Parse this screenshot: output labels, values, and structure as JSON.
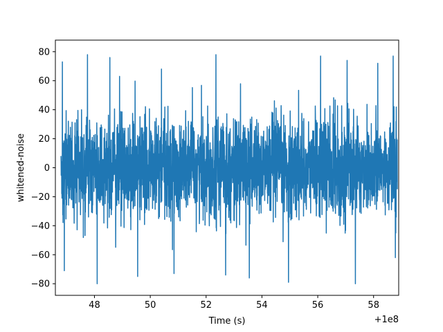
{
  "chart_data": {
    "type": "line",
    "title": "",
    "xlabel": "Time (s)",
    "ylabel": "whitened-noise",
    "x_offset_label": "+1e8",
    "xlim": [
      46.6,
      58.9
    ],
    "ylim": [
      -88,
      88
    ],
    "x_ticks": [
      48,
      50,
      52,
      54,
      56,
      58
    ],
    "y_ticks": [
      -80,
      -60,
      -40,
      -20,
      0,
      20,
      40,
      60,
      80
    ],
    "x_range": [
      46.8,
      58.85
    ],
    "grid": false,
    "legend": "none",
    "series": [
      {
        "color": "#1f77b4",
        "description": "dense whitened noise timeseries, mostly within ±45 with spikes up to ±80",
        "peaks": [
          {
            "x": 46.85,
            "y": 73
          },
          {
            "x": 46.92,
            "y": -71
          },
          {
            "x": 47.75,
            "y": 78
          },
          {
            "x": 48.1,
            "y": -80
          },
          {
            "x": 48.55,
            "y": 76
          },
          {
            "x": 48.9,
            "y": 63
          },
          {
            "x": 49.55,
            "y": -75
          },
          {
            "x": 50.4,
            "y": 68
          },
          {
            "x": 50.85,
            "y": -73
          },
          {
            "x": 52.35,
            "y": 78
          },
          {
            "x": 52.7,
            "y": -74
          },
          {
            "x": 53.55,
            "y": -76
          },
          {
            "x": 54.95,
            "y": -79
          },
          {
            "x": 56.1,
            "y": 77
          },
          {
            "x": 57.05,
            "y": 74
          },
          {
            "x": 57.35,
            "y": -80
          },
          {
            "x": 58.15,
            "y": 72
          },
          {
            "x": 58.7,
            "y": 77
          },
          {
            "x": 58.78,
            "y": -62
          }
        ]
      }
    ]
  }
}
